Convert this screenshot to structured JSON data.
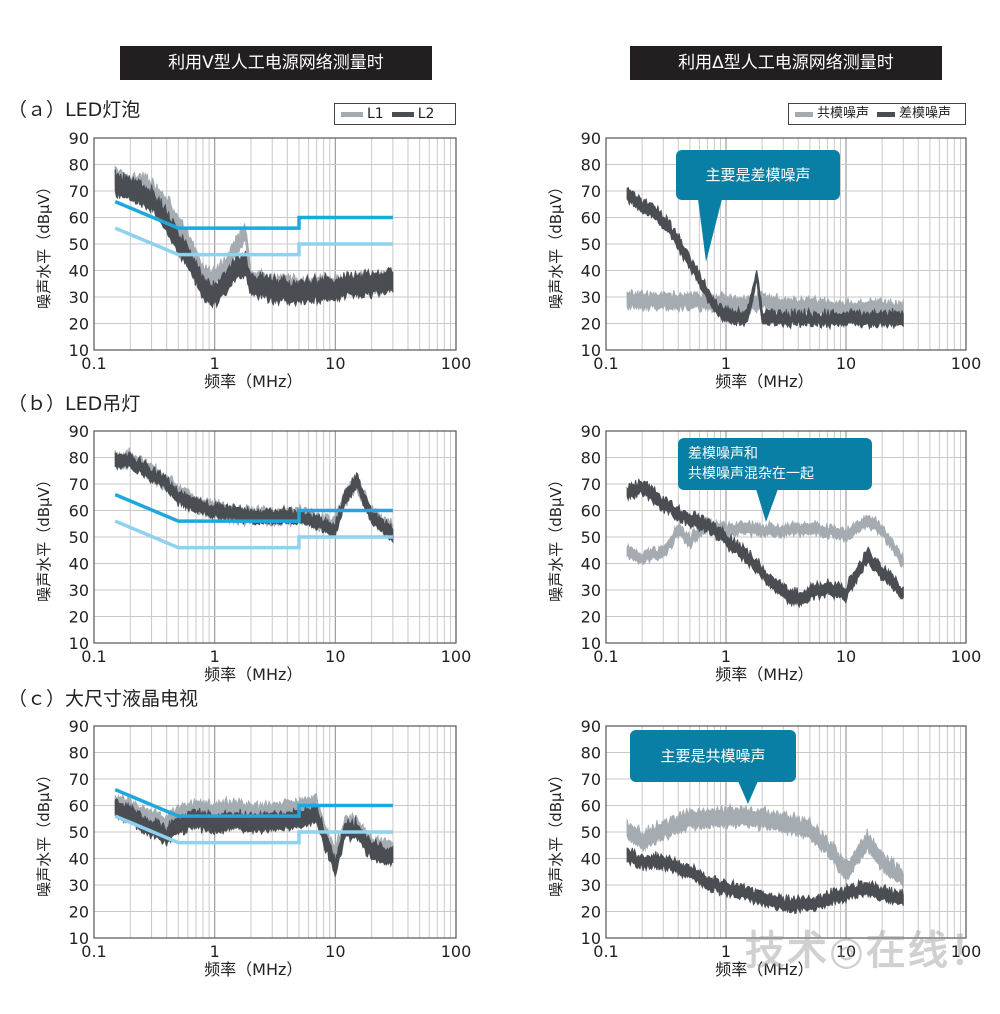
{
  "headers": {
    "left": "利用V型人工电源网络测量时",
    "right": "利用Δ型人工电源网络测量时"
  },
  "sections": {
    "a": "（ａ）LED灯泡",
    "b": "（ｂ）LED吊灯",
    "c": "（ｃ）大尺寸液晶电视"
  },
  "legends": {
    "left": [
      {
        "label": "L1",
        "color": "#a4abb1"
      },
      {
        "label": "L2",
        "color": "#4a4d52"
      }
    ],
    "right": [
      {
        "label": "共模噪声",
        "color": "#a4abb1"
      },
      {
        "label": "差模噪声",
        "color": "#4a4d52"
      }
    ]
  },
  "annotations": {
    "a_right": "主要是差模噪声",
    "b_right_line1": "差模噪声和",
    "b_right_line2": "共模噪声混杂在一起",
    "c_right": "主要是共模噪声"
  },
  "colors": {
    "limit_upper": "#1fa8dc",
    "limit_lower": "#8ed2ef",
    "light_series": "#a4abb1",
    "dark_series": "#4a4d52",
    "callout": "#0a7fa5",
    "header_bg": "#231f20"
  },
  "watermark": "技术◎在线！",
  "chart_data": [
    {
      "id": "a-left",
      "type": "line",
      "xlabel": "频率（MHz）",
      "ylabel": "噪声水平（dBμV）",
      "x_scale": "log",
      "xlim": [
        0.1,
        100
      ],
      "ylim": [
        10,
        90
      ],
      "xticks": [
        "0.1",
        "1",
        "10",
        "100"
      ],
      "yticks": [
        "10",
        "20",
        "30",
        "40",
        "50",
        "60",
        "70",
        "80",
        "90"
      ],
      "grid": true,
      "legend": "top-right",
      "limits": [
        {
          "role": "upper",
          "x": [
            0.15,
            0.5,
            5,
            5,
            30
          ],
          "y": [
            66,
            56,
            56,
            60,
            60
          ]
        },
        {
          "role": "lower",
          "x": [
            0.15,
            0.5,
            5,
            5,
            30
          ],
          "y": [
            56,
            46,
            46,
            50,
            50
          ]
        }
      ],
      "series": [
        {
          "name": "L1",
          "band": [
            3,
            5
          ],
          "x": [
            0.15,
            0.2,
            0.25,
            0.3,
            0.4,
            0.5,
            0.6,
            0.7,
            0.8,
            1,
            1.2,
            1.5,
            1.8,
            2,
            3,
            5,
            10,
            20,
            30
          ],
          "y": [
            74,
            72,
            72,
            70,
            64,
            56,
            50,
            44,
            38,
            36,
            40,
            48,
            54,
            36,
            34,
            33,
            34,
            34,
            35
          ]
        },
        {
          "name": "L2",
          "band": [
            4,
            6
          ],
          "x": [
            0.15,
            0.2,
            0.25,
            0.3,
            0.4,
            0.5,
            0.6,
            0.7,
            0.8,
            1,
            1.2,
            1.5,
            1.8,
            2,
            3,
            5,
            10,
            20,
            30
          ],
          "y": [
            72,
            70,
            68,
            66,
            58,
            50,
            44,
            38,
            32,
            30,
            34,
            40,
            42,
            34,
            32,
            31,
            33,
            34,
            36
          ]
        }
      ]
    },
    {
      "id": "a-right",
      "type": "line",
      "xlabel": "频率（MHz）",
      "ylabel": "噪声水平（dBμV）",
      "x_scale": "log",
      "xlim": [
        0.1,
        100
      ],
      "ylim": [
        10,
        90
      ],
      "xticks": [
        "0.1",
        "1",
        "10",
        "100"
      ],
      "yticks": [
        "10",
        "20",
        "30",
        "40",
        "50",
        "60",
        "70",
        "80",
        "90"
      ],
      "grid": true,
      "legend": "top-right",
      "series": [
        {
          "name": "共模噪声",
          "band": [
            3,
            4
          ],
          "x": [
            0.15,
            0.2,
            0.3,
            0.5,
            0.7,
            1,
            1.5,
            2,
            3,
            5,
            10,
            20,
            30
          ],
          "y": [
            29,
            28,
            28,
            28,
            28,
            27,
            27,
            28,
            26,
            26,
            25,
            25,
            25
          ]
        },
        {
          "name": "差模噪声",
          "band": [
            2,
            4
          ],
          "x": [
            0.15,
            0.2,
            0.25,
            0.3,
            0.4,
            0.5,
            0.6,
            0.7,
            0.8,
            1,
            1.5,
            1.8,
            2,
            3,
            5,
            10,
            20,
            30
          ],
          "y": [
            68,
            64,
            62,
            58,
            50,
            42,
            36,
            30,
            26,
            22,
            21,
            38,
            22,
            21,
            21,
            21,
            21,
            21
          ]
        }
      ]
    },
    {
      "id": "b-left",
      "type": "line",
      "xlabel": "频率（MHz）",
      "ylabel": "噪声水平（dBμV）",
      "x_scale": "log",
      "xlim": [
        0.1,
        100
      ],
      "ylim": [
        10,
        90
      ],
      "xticks": [
        "0.1",
        "1",
        "10",
        "100"
      ],
      "yticks": [
        "10",
        "20",
        "30",
        "40",
        "50",
        "60",
        "70",
        "80",
        "90"
      ],
      "grid": true,
      "legend": "top-right",
      "limits": [
        {
          "role": "upper",
          "x": [
            0.15,
            0.5,
            5,
            5,
            30
          ],
          "y": [
            66,
            56,
            56,
            60,
            60
          ]
        },
        {
          "role": "lower",
          "x": [
            0.15,
            0.5,
            5,
            5,
            30
          ],
          "y": [
            56,
            46,
            46,
            50,
            50
          ]
        }
      ],
      "series": [
        {
          "name": "L1",
          "band": [
            3,
            4
          ],
          "x": [
            0.15,
            0.2,
            0.3,
            0.4,
            0.5,
            0.7,
            1,
            1.5,
            2,
            3,
            5,
            7,
            10,
            12,
            15,
            20,
            30
          ],
          "y": [
            79,
            79,
            74,
            70,
            66,
            62,
            60,
            58,
            58,
            57,
            58,
            56,
            54,
            64,
            70,
            58,
            52
          ]
        },
        {
          "name": "L2",
          "band": [
            2,
            4
          ],
          "x": [
            0.15,
            0.2,
            0.3,
            0.4,
            0.5,
            0.7,
            1,
            1.5,
            2,
            3,
            5,
            7,
            10,
            12,
            15,
            20,
            30
          ],
          "y": [
            78,
            78,
            73,
            69,
            64,
            61,
            59,
            58,
            57,
            57,
            57,
            55,
            52,
            64,
            70,
            57,
            50
          ]
        }
      ]
    },
    {
      "id": "b-right",
      "type": "line",
      "xlabel": "频率（MHz）",
      "ylabel": "噪声水平（dBμV）",
      "x_scale": "log",
      "xlim": [
        0.1,
        100
      ],
      "ylim": [
        10,
        90
      ],
      "xticks": [
        "0.1",
        "1",
        "10",
        "100"
      ],
      "yticks": [
        "10",
        "20",
        "30",
        "40",
        "50",
        "60",
        "70",
        "80",
        "90"
      ],
      "grid": true,
      "legend": "top-right",
      "series": [
        {
          "name": "共模噪声",
          "band": [
            2,
            3
          ],
          "x": [
            0.15,
            0.2,
            0.3,
            0.4,
            0.5,
            0.7,
            1,
            1.5,
            2,
            3,
            5,
            7,
            10,
            15,
            20,
            30
          ],
          "y": [
            44,
            42,
            44,
            52,
            48,
            54,
            52,
            53,
            52,
            52,
            53,
            52,
            50,
            56,
            52,
            40
          ]
        },
        {
          "name": "差模噪声",
          "band": [
            2,
            4
          ],
          "x": [
            0.15,
            0.2,
            0.3,
            0.4,
            0.5,
            0.7,
            1,
            1.5,
            2,
            3,
            4,
            5,
            7,
            10,
            15,
            20,
            30
          ],
          "y": [
            66,
            68,
            62,
            58,
            56,
            54,
            48,
            42,
            36,
            28,
            26,
            28,
            30,
            28,
            42,
            36,
            28
          ]
        }
      ]
    },
    {
      "id": "c-left",
      "type": "line",
      "xlabel": "频率（MHz）",
      "ylabel": "噪声水平（dBμV）",
      "x_scale": "log",
      "xlim": [
        0.1,
        100
      ],
      "ylim": [
        10,
        90
      ],
      "xticks": [
        "0.1",
        "1",
        "10",
        "100"
      ],
      "yticks": [
        "10",
        "20",
        "30",
        "40",
        "50",
        "60",
        "70",
        "80",
        "90"
      ],
      "grid": true,
      "legend": "top-right",
      "limits": [
        {
          "role": "upper",
          "x": [
            0.15,
            0.5,
            5,
            5,
            30
          ],
          "y": [
            66,
            56,
            56,
            60,
            60
          ]
        },
        {
          "role": "lower",
          "x": [
            0.15,
            0.5,
            5,
            5,
            30
          ],
          "y": [
            56,
            46,
            46,
            50,
            50
          ]
        }
      ],
      "series": [
        {
          "name": "L1",
          "band": [
            3,
            5
          ],
          "x": [
            0.15,
            0.2,
            0.3,
            0.4,
            0.5,
            0.7,
            1,
            1.5,
            2,
            3,
            5,
            7,
            8,
            10,
            12,
            15,
            20,
            30
          ],
          "y": [
            60,
            58,
            54,
            52,
            56,
            58,
            57,
            58,
            56,
            57,
            58,
            60,
            50,
            40,
            52,
            52,
            44,
            42
          ]
        },
        {
          "name": "L2",
          "band": [
            3,
            5
          ],
          "x": [
            0.15,
            0.2,
            0.3,
            0.4,
            0.5,
            0.7,
            1,
            1.5,
            2,
            3,
            5,
            7,
            8,
            10,
            12,
            15,
            20,
            30
          ],
          "y": [
            58,
            56,
            50,
            48,
            52,
            54,
            52,
            54,
            52,
            53,
            54,
            56,
            48,
            36,
            50,
            50,
            42,
            40
          ]
        }
      ]
    },
    {
      "id": "c-right",
      "type": "line",
      "xlabel": "频率（MHz）",
      "ylabel": "噪声水平（dBμV）",
      "x_scale": "log",
      "xlim": [
        0.1,
        100
      ],
      "ylim": [
        10,
        90
      ],
      "xticks": [
        "0.1",
        "1",
        "10",
        "100"
      ],
      "yticks": [
        "10",
        "20",
        "30",
        "40",
        "50",
        "60",
        "70",
        "80",
        "90"
      ],
      "grid": true,
      "legend": "top-right",
      "series": [
        {
          "name": "共模噪声",
          "band": [
            3,
            5
          ],
          "x": [
            0.15,
            0.2,
            0.3,
            0.4,
            0.5,
            0.7,
            1,
            1.5,
            2,
            3,
            5,
            7,
            10,
            15,
            20,
            30
          ],
          "y": [
            50,
            46,
            50,
            52,
            54,
            54,
            55,
            55,
            54,
            53,
            50,
            44,
            34,
            46,
            38,
            32
          ]
        },
        {
          "name": "差模噪声",
          "band": [
            2,
            4
          ],
          "x": [
            0.15,
            0.2,
            0.3,
            0.4,
            0.5,
            0.7,
            1,
            1.5,
            2,
            3,
            5,
            7,
            10,
            15,
            20,
            30
          ],
          "y": [
            40,
            38,
            38,
            36,
            34,
            30,
            28,
            26,
            24,
            22,
            22,
            24,
            26,
            28,
            26,
            24
          ]
        }
      ]
    }
  ]
}
